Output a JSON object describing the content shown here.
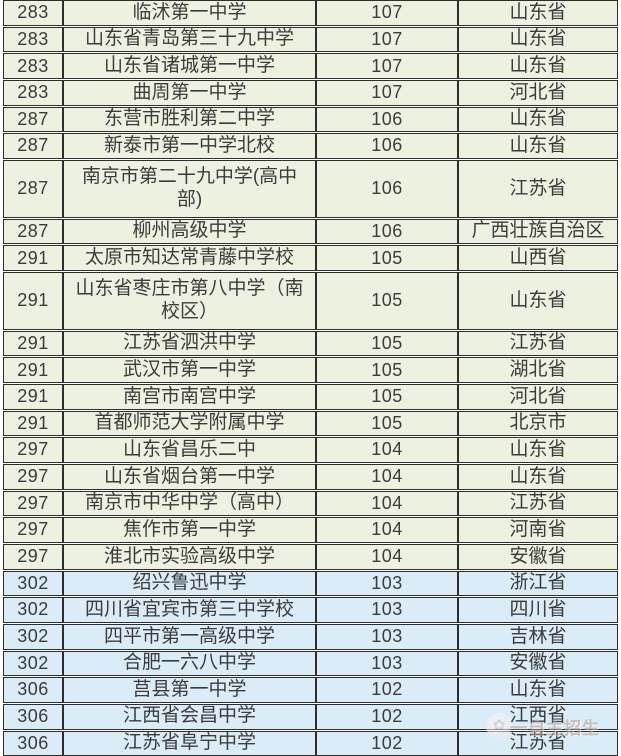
{
  "chart_data": {
    "type": "table",
    "columns": [
      "rank",
      "school",
      "score",
      "province"
    ],
    "row_bands": {
      "green_hex": "#ecf1e0",
      "blue_hex": "#d9ecf7"
    },
    "rows": [
      {
        "rank": "283",
        "school": "临沭第一中学",
        "score": "107",
        "province": "山东省",
        "band": "green",
        "tall": false
      },
      {
        "rank": "283",
        "school": "山东省青岛第三十九中学",
        "score": "107",
        "province": "山东省",
        "band": "green",
        "tall": false
      },
      {
        "rank": "283",
        "school": "山东省诸城第一中学",
        "score": "107",
        "province": "山东省",
        "band": "green",
        "tall": false
      },
      {
        "rank": "283",
        "school": "曲周第一中学",
        "score": "107",
        "province": "河北省",
        "band": "green",
        "tall": false
      },
      {
        "rank": "287",
        "school": "东营市胜利第二中学",
        "score": "106",
        "province": "山东省",
        "band": "green",
        "tall": false
      },
      {
        "rank": "287",
        "school": "新泰市第一中学北校",
        "score": "106",
        "province": "山东省",
        "band": "green",
        "tall": false
      },
      {
        "rank": "287",
        "school": "南京市第二十九中学(高中部)",
        "score": "106",
        "province": "江苏省",
        "band": "green",
        "tall": true
      },
      {
        "rank": "287",
        "school": "柳州高级中学",
        "score": "106",
        "province": "广西壮族自治区",
        "band": "green",
        "tall": false
      },
      {
        "rank": "291",
        "school": "太原市知达常青藤中学校",
        "score": "105",
        "province": "山西省",
        "band": "green",
        "tall": false
      },
      {
        "rank": "291",
        "school": "山东省枣庄市第八中学（南校区）",
        "score": "105",
        "province": "山东省",
        "band": "green",
        "tall": true
      },
      {
        "rank": "291",
        "school": "江苏省泗洪中学",
        "score": "105",
        "province": "江苏省",
        "band": "green",
        "tall": false
      },
      {
        "rank": "291",
        "school": "武汉市第一中学",
        "score": "105",
        "province": "湖北省",
        "band": "green",
        "tall": false
      },
      {
        "rank": "291",
        "school": "南宫市南宫中学",
        "score": "105",
        "province": "河北省",
        "band": "green",
        "tall": false
      },
      {
        "rank": "291",
        "school": "首都师范大学附属中学",
        "score": "105",
        "province": "北京市",
        "band": "green",
        "tall": false
      },
      {
        "rank": "297",
        "school": "山东省昌乐二中",
        "score": "104",
        "province": "山东省",
        "band": "green",
        "tall": false
      },
      {
        "rank": "297",
        "school": "山东省烟台第一中学",
        "score": "104",
        "province": "山东省",
        "band": "green",
        "tall": false
      },
      {
        "rank": "297",
        "school": "南京市中华中学（高中）",
        "score": "104",
        "province": "江苏省",
        "band": "green",
        "tall": false
      },
      {
        "rank": "297",
        "school": "焦作市第一中学",
        "score": "104",
        "province": "河南省",
        "band": "green",
        "tall": false
      },
      {
        "rank": "297",
        "school": "淮北市实验高级中学",
        "score": "104",
        "province": "安徽省",
        "band": "green",
        "tall": false
      },
      {
        "rank": "302",
        "school": "绍兴鲁迅中学",
        "score": "103",
        "province": "浙江省",
        "band": "blue",
        "tall": false
      },
      {
        "rank": "302",
        "school": "四川省宜宾市第三中学校",
        "score": "103",
        "province": "四川省",
        "band": "blue",
        "tall": false
      },
      {
        "rank": "302",
        "school": "四平市第一高级中学",
        "score": "103",
        "province": "吉林省",
        "band": "blue",
        "tall": false
      },
      {
        "rank": "302",
        "school": "合肥一六八中学",
        "score": "103",
        "province": "安徽省",
        "band": "blue",
        "tall": false
      },
      {
        "rank": "306",
        "school": "莒县第一中学",
        "score": "102",
        "province": "山东省",
        "band": "blue",
        "tall": false
      },
      {
        "rank": "306",
        "school": "江西省会昌中学",
        "score": "102",
        "province": "江西省",
        "band": "blue",
        "tall": false
      },
      {
        "rank": "306",
        "school": "江苏省阜宁中学",
        "score": "102",
        "province": "江苏省",
        "band": "blue",
        "tall": false
      }
    ]
  },
  "colors": {
    "row_band_green": "#ecf1e0",
    "row_band_blue": "#d9ecf7",
    "grid": "#2e2e2e",
    "text": "#3c3c3c",
    "watermark_text": "#b59a92"
  },
  "watermark": {
    "icon": "flower-seal-icon",
    "text": "一自主招生"
  }
}
